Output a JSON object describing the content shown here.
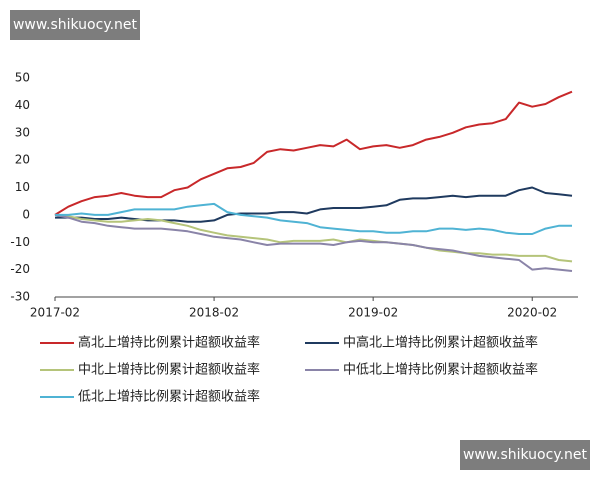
{
  "watermarks": [
    "www.shikuocy.net",
    "www.shikuocy.net"
  ],
  "chart_data": {
    "type": "line",
    "x": [
      "2017-02",
      "2017-03",
      "2017-04",
      "2017-05",
      "2017-06",
      "2017-07",
      "2017-08",
      "2017-09",
      "2017-10",
      "2017-11",
      "2017-12",
      "2018-01",
      "2018-02",
      "2018-03",
      "2018-04",
      "2018-05",
      "2018-06",
      "2018-07",
      "2018-08",
      "2018-09",
      "2018-10",
      "2018-11",
      "2018-12",
      "2019-01",
      "2019-02",
      "2019-03",
      "2019-04",
      "2019-05",
      "2019-06",
      "2019-07",
      "2019-08",
      "2019-09",
      "2019-10",
      "2019-11",
      "2019-12",
      "2020-01",
      "2020-02",
      "2020-03",
      "2020-04",
      "2020-05"
    ],
    "xlim": [
      "2017-02",
      "2020-05"
    ],
    "xticks": [
      "2017-02",
      "2018-02",
      "2019-02",
      "2020-02"
    ],
    "ylim": [
      -30,
      50
    ],
    "yticks": [
      -30,
      -20,
      -10,
      0,
      10,
      20,
      30,
      40,
      50
    ],
    "series": [
      {
        "name": "高北上增持比例累计超额收益率",
        "color": "#c8282a",
        "values": [
          0,
          3,
          5,
          6.5,
          7,
          8,
          7,
          6.5,
          6.5,
          9,
          10,
          13,
          15,
          17,
          17.5,
          19,
          23,
          24,
          23.5,
          24.5,
          25.5,
          25,
          27.5,
          24,
          25,
          25.5,
          24.5,
          25.5,
          27.5,
          28.5,
          30,
          32,
          33,
          33.5,
          35,
          41,
          39.5,
          40.5,
          43,
          45
        ]
      },
      {
        "name": "中高北上增持比例累计超额收益率",
        "color": "#1f3a5f",
        "values": [
          -1,
          -1,
          -1,
          -1.5,
          -1.5,
          -1,
          -1.5,
          -2,
          -2,
          -2,
          -2.5,
          -2.5,
          -2,
          0,
          0.5,
          0.5,
          0.5,
          1,
          1,
          0.5,
          2,
          2.5,
          2.5,
          2.5,
          3,
          3.5,
          5.5,
          6,
          6,
          6.5,
          7,
          6.5,
          7,
          7,
          7,
          9,
          10,
          8,
          7.5,
          7
        ]
      },
      {
        "name": "中北上增持比例累计超额收益率",
        "color": "#b5c47a",
        "values": [
          0,
          -0.5,
          -1.5,
          -2,
          -2.5,
          -2.5,
          -2,
          -1.5,
          -2,
          -3,
          -4,
          -5.5,
          -6.5,
          -7.5,
          -8,
          -8.5,
          -9,
          -10,
          -9.5,
          -9.5,
          -9.5,
          -9,
          -10,
          -9,
          -9.5,
          -10,
          -10.5,
          -11,
          -12,
          -13,
          -13.5,
          -14,
          -14,
          -14.5,
          -14.5,
          -15,
          -15,
          -15,
          -16.5,
          -17
        ]
      },
      {
        "name": "中低北上增持比例累计超额收益率",
        "color": "#8a84a8",
        "values": [
          0,
          -1,
          -2.5,
          -3,
          -4,
          -4.5,
          -5,
          -5,
          -5,
          -5.5,
          -6,
          -7,
          -8,
          -8.5,
          -9,
          -10,
          -11,
          -10.5,
          -10.5,
          -10.5,
          -10.5,
          -11,
          -10,
          -9.5,
          -10,
          -10,
          -10.5,
          -11,
          -12,
          -12.5,
          -13,
          -14,
          -15,
          -15.5,
          -16,
          -16.5,
          -20,
          -19.5,
          -20,
          -20.5
        ]
      },
      {
        "name": "低北上增持比例累计超额收益率",
        "color": "#4fb3d4",
        "values": [
          0,
          0,
          0.5,
          0,
          0,
          1,
          2,
          2,
          2,
          2,
          3,
          3.5,
          4,
          1,
          0,
          -0.5,
          -1,
          -2,
          -2.5,
          -3,
          -4.5,
          -5,
          -5.5,
          -6,
          -6,
          -6.5,
          -6.5,
          -6,
          -6,
          -5,
          -5,
          -5.5,
          -5,
          -5.5,
          -6.5,
          -7,
          -7,
          -5,
          -4,
          -4
        ]
      }
    ]
  }
}
